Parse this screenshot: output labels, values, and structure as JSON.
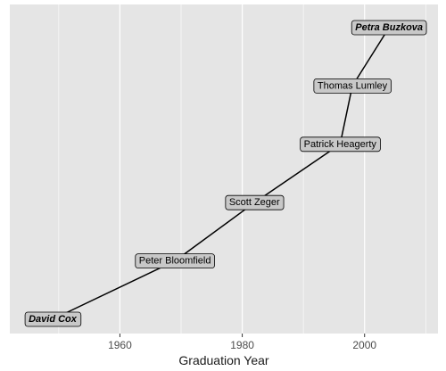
{
  "chart_data": {
    "type": "line",
    "title": "",
    "xlabel": "Graduation Year",
    "ylabel": "",
    "xlim": [
      1942,
      2012
    ],
    "ylim": [
      0,
      5
    ],
    "x_ticks": [
      1960,
      1980,
      2000
    ],
    "y_axis_visible": false,
    "grid": {
      "major_x": true,
      "minor_x": true,
      "y": false
    },
    "colors": {
      "panel": "#e5e5e5",
      "grid": "#ffffff",
      "line": "#000000",
      "label_fill": "#c8c8c8"
    },
    "points": [
      {
        "x": 1949,
        "y": 0,
        "label": "David Cox",
        "emphasis": true
      },
      {
        "x": 1969,
        "y": 1,
        "label": "Peter Bloomfield",
        "emphasis": false
      },
      {
        "x": 1982,
        "y": 2,
        "label": "Scott Zeger",
        "emphasis": false
      },
      {
        "x": 1996,
        "y": 3,
        "label": "Patrick Heagerty",
        "emphasis": false
      },
      {
        "x": 1998,
        "y": 4,
        "label": "Thomas Lumley",
        "emphasis": false
      },
      {
        "x": 2004,
        "y": 5,
        "label": "Petra Buzkova",
        "emphasis": true
      }
    ]
  }
}
